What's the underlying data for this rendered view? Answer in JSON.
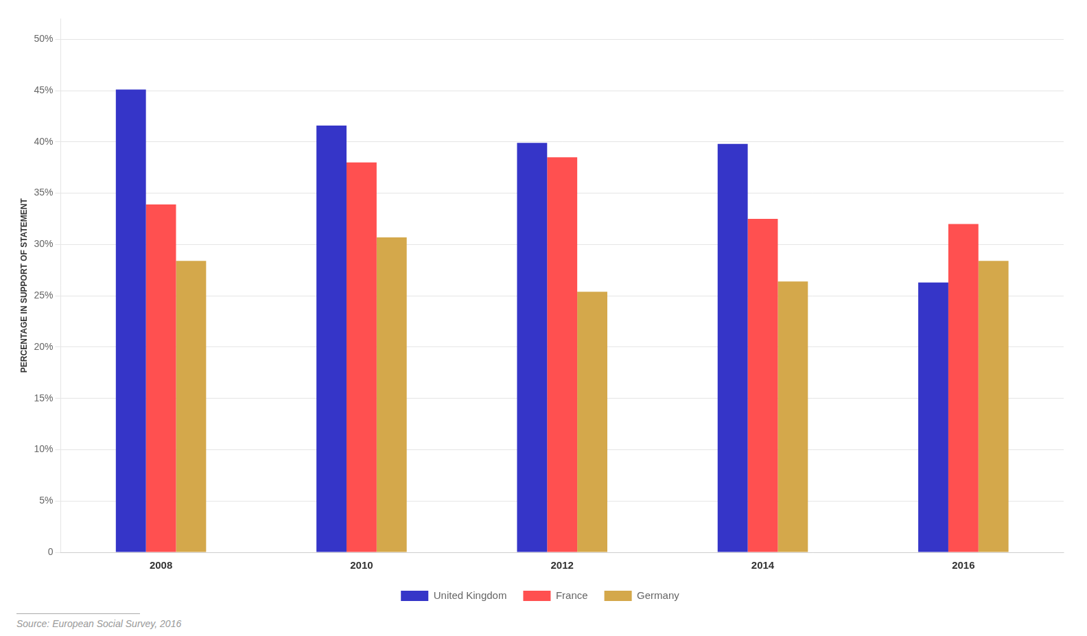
{
  "chart_data": {
    "type": "bar",
    "categories": [
      "2008",
      "2010",
      "2012",
      "2014",
      "2016"
    ],
    "series": [
      {
        "name": "United Kingdom",
        "color": "#3535C8",
        "values": [
          0.451,
          0.416,
          0.399,
          0.398,
          0.263
        ]
      },
      {
        "name": "France",
        "color": "#FF5050",
        "values": [
          0.339,
          0.38,
          0.385,
          0.325,
          0.32
        ]
      },
      {
        "name": "Germany",
        "color": "#D4A84B",
        "values": [
          0.284,
          0.307,
          0.254,
          0.264,
          0.284
        ]
      }
    ],
    "ylabel": "PERCENTAGE IN SUPPORT OF STATEMENT",
    "ylim": [
      0,
      0.52
    ],
    "yticks": [
      0,
      {
        "value": 0.05,
        "label": "5%"
      },
      {
        "value": 0.1,
        "label": "10%"
      },
      {
        "value": 0.15,
        "label": "15%"
      },
      {
        "value": 0.2,
        "label": "20%"
      },
      {
        "value": 0.25,
        "label": "25%"
      },
      {
        "value": 0.3,
        "label": "30%"
      },
      {
        "value": 0.35,
        "label": "35%"
      },
      {
        "value": 0.4,
        "label": "40%"
      },
      {
        "value": 0.45,
        "label": "45%"
      },
      {
        "value": 0.5,
        "label": "50%"
      }
    ],
    "grid": true,
    "legend": "bottom",
    "source": "Source: European Social Survey, 2016"
  }
}
